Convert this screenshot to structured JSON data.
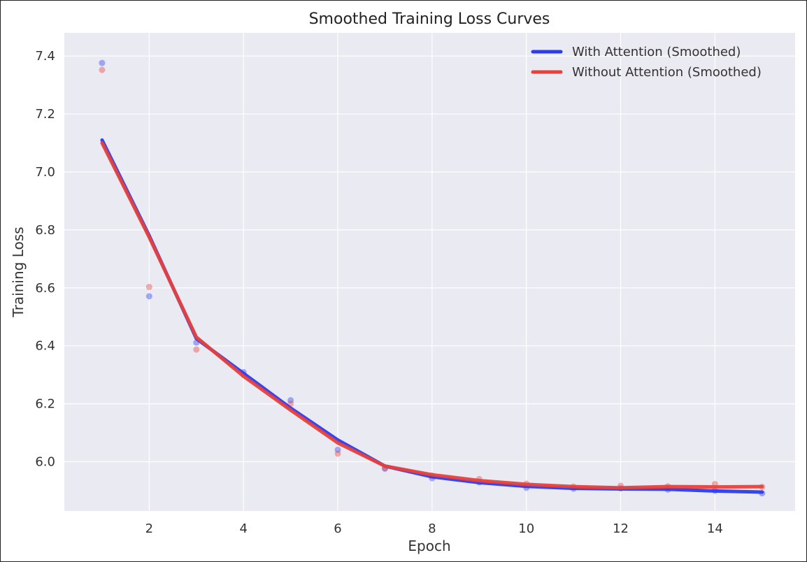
{
  "chart_data": {
    "type": "line",
    "title": "Smoothed Training Loss Curves",
    "xlabel": "Epoch",
    "ylabel": "Training Loss",
    "xlim": [
      0.2,
      15.7
    ],
    "ylim": [
      5.83,
      7.48
    ],
    "xticks": [
      2,
      4,
      6,
      8,
      10,
      12,
      14
    ],
    "yticks": [
      6.0,
      6.2,
      6.4,
      6.6,
      6.8,
      7.0,
      7.2,
      7.4
    ],
    "grid": true,
    "legend_position": "top-right",
    "x": [
      1,
      2,
      3,
      4,
      5,
      6,
      7,
      8,
      9,
      10,
      11,
      12,
      13,
      14,
      15
    ],
    "series": [
      {
        "name": "With Attention (Smoothed)",
        "color": "#2b3cf0",
        "smoothed": [
          7.11,
          6.78,
          6.425,
          6.305,
          6.185,
          6.075,
          5.985,
          5.948,
          5.928,
          5.915,
          5.908,
          5.906,
          5.905,
          5.899,
          5.895
        ],
        "raw": [
          7.376,
          6.571,
          6.411,
          6.309,
          6.212,
          6.041,
          5.976,
          5.943,
          5.929,
          5.91,
          5.907,
          5.908,
          5.904,
          5.9,
          5.891
        ]
      },
      {
        "name": "Without Attention (Smoothed)",
        "color": "#e8413b",
        "smoothed": [
          7.1,
          6.775,
          6.43,
          6.295,
          6.178,
          6.065,
          5.985,
          5.955,
          5.935,
          5.922,
          5.914,
          5.91,
          5.914,
          5.913,
          5.914
        ],
        "raw": [
          7.352,
          6.603,
          6.387,
          6.3,
          6.2,
          6.028,
          5.978,
          5.952,
          5.94,
          5.924,
          5.914,
          5.917,
          5.915,
          5.923,
          5.913
        ]
      }
    ]
  }
}
